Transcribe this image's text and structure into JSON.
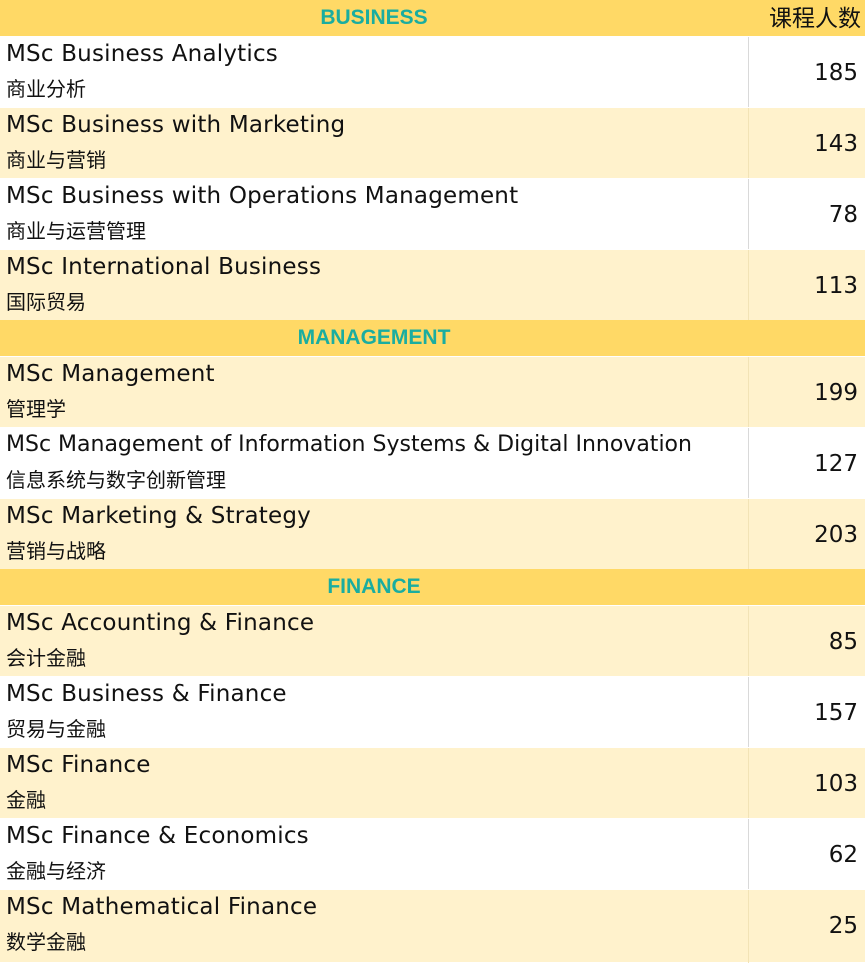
{
  "header_count_label": "课程人数",
  "sections": [
    {
      "title": "BUSINESS",
      "rows": [
        {
          "en": "MSc Business Analytics",
          "cn": "商业分析",
          "count": "185"
        },
        {
          "en": "MSc Business with Marketing",
          "cn": "商业与营销",
          "count": "143"
        },
        {
          "en": "MSc Business with Operations Management",
          "cn": "商业与运营管理",
          "count": "78"
        },
        {
          "en": "MSc International Business",
          "cn": "国际贸易",
          "count": "113"
        }
      ]
    },
    {
      "title": "MANAGEMENT",
      "rows": [
        {
          "en": "MSc Management",
          "cn": "管理学",
          "count": "199"
        },
        {
          "en": "MSc Management of Information Systems & Digital Innovation",
          "cn": "信息系统与数字创新管理",
          "count": "127"
        },
        {
          "en": "MSc Marketing & Strategy",
          "cn": "营销与战略",
          "count": "203"
        }
      ]
    },
    {
      "title": "FINANCE",
      "rows": [
        {
          "en": "MSc Accounting & Finance",
          "cn": "会计金融",
          "count": "85"
        },
        {
          "en": "MSc Business & Finance",
          "cn": "贸易与金融",
          "count": "157"
        },
        {
          "en": "MSc Finance",
          "cn": "金融",
          "count": "103"
        },
        {
          "en": "MSc Finance & Economics",
          "cn": "金融与经济",
          "count": "62"
        },
        {
          "en": "MSc Mathematical Finance",
          "cn": "数学金融",
          "count": "25"
        }
      ]
    }
  ],
  "colors": {
    "header_bg": "#FFD966",
    "header_text": "#1AADA0",
    "band_bg": "#FFF2CC",
    "plain_bg": "#FFFFFF"
  }
}
